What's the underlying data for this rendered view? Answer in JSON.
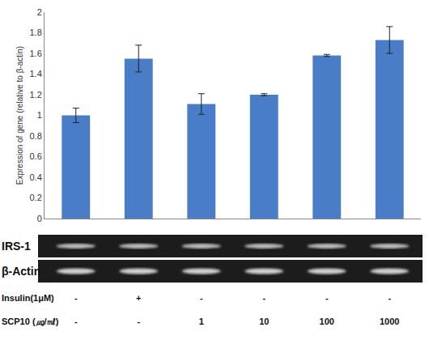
{
  "chart_data": {
    "type": "bar",
    "categories": [
      null,
      null,
      null,
      null,
      null,
      null
    ],
    "values": [
      1.0,
      1.55,
      1.11,
      1.2,
      1.58,
      1.73
    ],
    "errors": [
      0.07,
      0.13,
      0.1,
      0.01,
      0.01,
      0.13
    ],
    "color": "#4a7dc8",
    "y_label": "Expression of gene (relative to β-actin)",
    "ylim": [
      0,
      2
    ],
    "yticks": [
      0,
      0.2,
      0.4,
      0.6,
      0.8,
      1,
      1.2,
      1.4,
      1.6,
      1.8,
      2
    ],
    "grid": false,
    "tick_labels": "y"
  },
  "gel": {
    "lanes": [
      "IRS-1",
      "β-Actin"
    ]
  },
  "treatments": [
    {
      "label": "Insulin(1μM)",
      "values": [
        "-",
        "+",
        "-",
        "-",
        "-",
        "-"
      ]
    },
    {
      "label": "SCP10 (㎍/㎖)",
      "values": [
        "-",
        "-",
        "1",
        "10",
        "100",
        "1000"
      ]
    }
  ]
}
